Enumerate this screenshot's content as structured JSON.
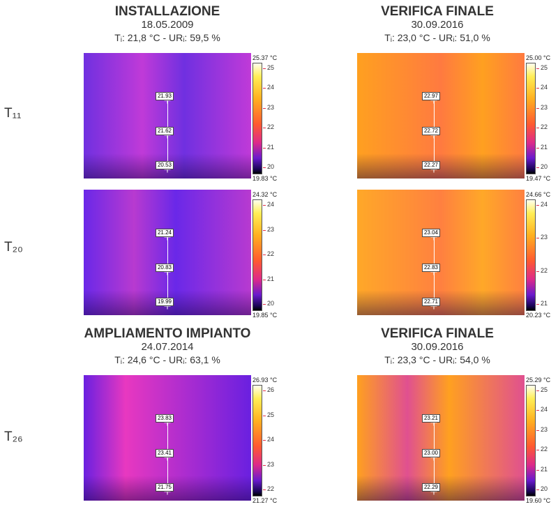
{
  "headers": [
    {
      "title": "INSTALLAZIONE",
      "date": "18.05.2009",
      "cond": "Tᵢ: 21,8 °C - URᵢ: 59,5 %"
    },
    {
      "title": "VERIFICA FINALE",
      "date": "30.09.2016",
      "cond": "Tᵢ: 23,0 °C - URᵢ: 51,0 %"
    },
    {
      "title": "AMPLIAMENTO IMPIANTO",
      "date": "24.07.2014",
      "cond": "Tᵢ: 24,6 °C - URᵢ: 63,1 %"
    },
    {
      "title": "VERIFICA FINALE",
      "date": "30.09.2016",
      "cond": "Tᵢ: 23,3 °C - URᵢ: 54,0 %"
    }
  ],
  "rows": [
    "T₁₁",
    "T₂₀",
    "T₂₆"
  ],
  "thermograms": [
    {
      "max": "25.37 °C",
      "min": "19.83 °C",
      "ticks": [
        "25",
        "24",
        "23",
        "22",
        "21",
        "20"
      ],
      "points": [
        "21.93",
        "21.62",
        "20.53"
      ],
      "base": "#7030e0",
      "accent": "#c03ad8"
    },
    {
      "max": "25.00 °C",
      "min": "19.47 °C",
      "ticks": [
        "25",
        "24",
        "23",
        "22",
        "21",
        "20"
      ],
      "points": [
        "22.97",
        "22.72",
        "22.27"
      ],
      "base": "#ffa020",
      "accent": "#ff7a40"
    },
    {
      "max": "24.32 °C",
      "min": "19.85 °C",
      "ticks": [
        "24",
        "23",
        "22",
        "21",
        "20"
      ],
      "points": [
        "21.24",
        "20.83",
        "19.99"
      ],
      "base": "#6a28e8",
      "accent": "#b83ad0"
    },
    {
      "max": "24.66 °C",
      "min": "20.23 °C",
      "ticks": [
        "24",
        "23",
        "22",
        "21"
      ],
      "points": [
        "23.04",
        "22.83",
        "22.71"
      ],
      "base": "#ffa828",
      "accent": "#ff8040"
    },
    {
      "max": "26.93 °C",
      "min": "21.27 °C",
      "ticks": [
        "26",
        "25",
        "24",
        "23",
        "22"
      ],
      "points": [
        "23.83",
        "23.41",
        "21.75"
      ],
      "base": "#e838c0",
      "accent": "#6a20e0"
    },
    {
      "max": "25.29 °C",
      "min": "19.60 °C",
      "ticks": [
        "25",
        "24",
        "23",
        "22",
        "21",
        "20"
      ],
      "points": [
        "23.21",
        "23.00",
        "22.29"
      ],
      "base": "#ffa020",
      "accent": "#e05090"
    }
  ]
}
